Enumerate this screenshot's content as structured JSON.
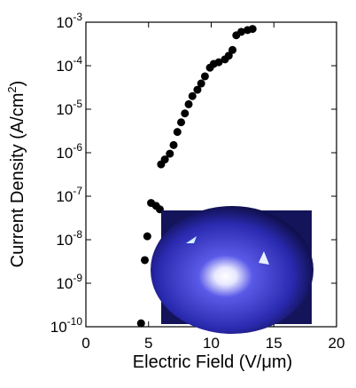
{
  "chart_data": {
    "type": "scatter",
    "xlabel": "Electric Field (V/μm)",
    "ylabel": {
      "text": "Current Density (A/cm",
      "superscript": "2",
      "suffix": ")"
    },
    "log_y": true,
    "color": "#000000",
    "xlim": [
      0,
      20
    ],
    "xticks": [
      0,
      5,
      10,
      15,
      20
    ],
    "ylim": [
      1e-10,
      0.001
    ],
    "yticks": [
      {
        "value": 1e-10,
        "label": "10",
        "exponent": "-10"
      },
      {
        "value": 1e-09,
        "label": "10",
        "exponent": "-9"
      },
      {
        "value": 1e-08,
        "label": "10",
        "exponent": "-8"
      },
      {
        "value": 1e-07,
        "label": "10",
        "exponent": "-7"
      },
      {
        "value": 1e-06,
        "label": "10",
        "exponent": "-6"
      },
      {
        "value": 1e-05,
        "label": "10",
        "exponent": "-5"
      },
      {
        "value": 0.0001,
        "label": "10",
        "exponent": "-4"
      },
      {
        "value": 0.001,
        "label": "10",
        "exponent": "-3"
      }
    ],
    "x": [
      4.4,
      4.7,
      4.9,
      5.2,
      5.6,
      5.9,
      6.0,
      6.3,
      6.7,
      7.0,
      7.3,
      7.6,
      7.9,
      8.2,
      8.5,
      8.9,
      9.2,
      9.5,
      9.9,
      10.2,
      10.6,
      11.1,
      11.4,
      11.7,
      12.0,
      12.4,
      12.9,
      13.3
    ],
    "values": [
      1.2e-10,
      3.4e-09,
      1.2e-08,
      7e-08,
      6e-08,
      5e-08,
      5.4e-07,
      7e-07,
      9.5e-07,
      1.5e-06,
      3e-06,
      5e-06,
      8e-06,
      1.3e-05,
      2e-05,
      2.8e-05,
      3.9e-05,
      5.7e-05,
      9e-05,
      0.00011,
      0.00012,
      0.00014,
      0.00017,
      0.00023,
      0.0005,
      0.0006,
      0.00066,
      0.0007
    ]
  }
}
